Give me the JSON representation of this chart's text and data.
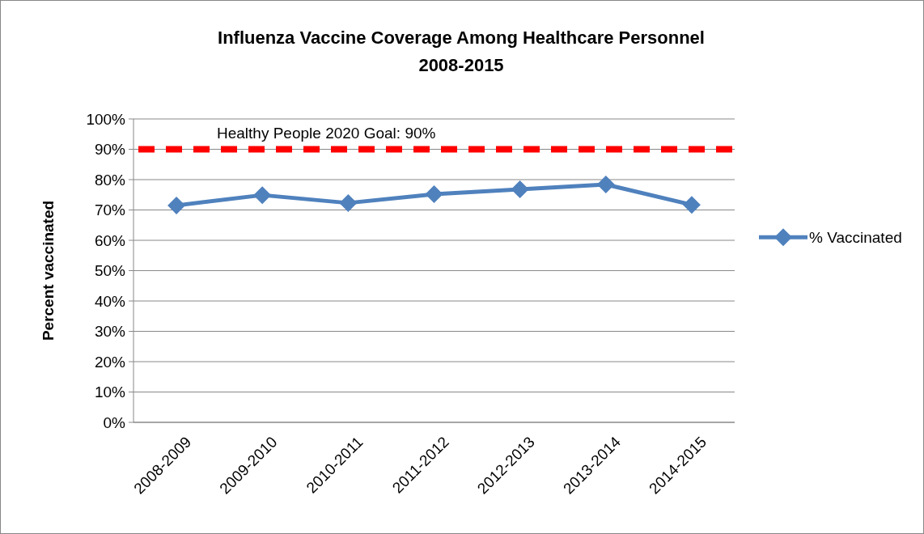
{
  "chart_data": {
    "type": "line",
    "title": "Influenza Vaccine Coverage Among Healthcare Personnel\n2008-2015",
    "ylabel": "Percent vaccinated",
    "categories": [
      "2008-2009",
      "2009-2010",
      "2010-2011",
      "2011-2012",
      "2012-2013",
      "2013-2014",
      "2014-2015"
    ],
    "series": [
      {
        "name": "% Vaccinated",
        "color": "#4f81bd",
        "values": [
          71.5,
          74.9,
          72.3,
          75.2,
          76.8,
          78.4,
          71.7
        ]
      }
    ],
    "ylim": [
      0,
      100
    ],
    "yticks": [
      {
        "value": 0,
        "label": "0%"
      },
      {
        "value": 10,
        "label": "10%"
      },
      {
        "value": 20,
        "label": "20%"
      },
      {
        "value": 30,
        "label": "30%"
      },
      {
        "value": 40,
        "label": "40%"
      },
      {
        "value": 50,
        "label": "50%"
      },
      {
        "value": 60,
        "label": "60%"
      },
      {
        "value": 70,
        "label": "70%"
      },
      {
        "value": 80,
        "label": "80%"
      },
      {
        "value": 90,
        "label": "90%"
      },
      {
        "value": 100,
        "label": "100%"
      }
    ],
    "ref_lines": [
      {
        "axis": "y",
        "value": 90,
        "label": "Healthy People 2020 Goal: 90%",
        "color": "#ff0000",
        "line_style": "dashed"
      }
    ],
    "grid": "y",
    "legend": "right",
    "marker": "diamond",
    "line_style": "solid"
  }
}
